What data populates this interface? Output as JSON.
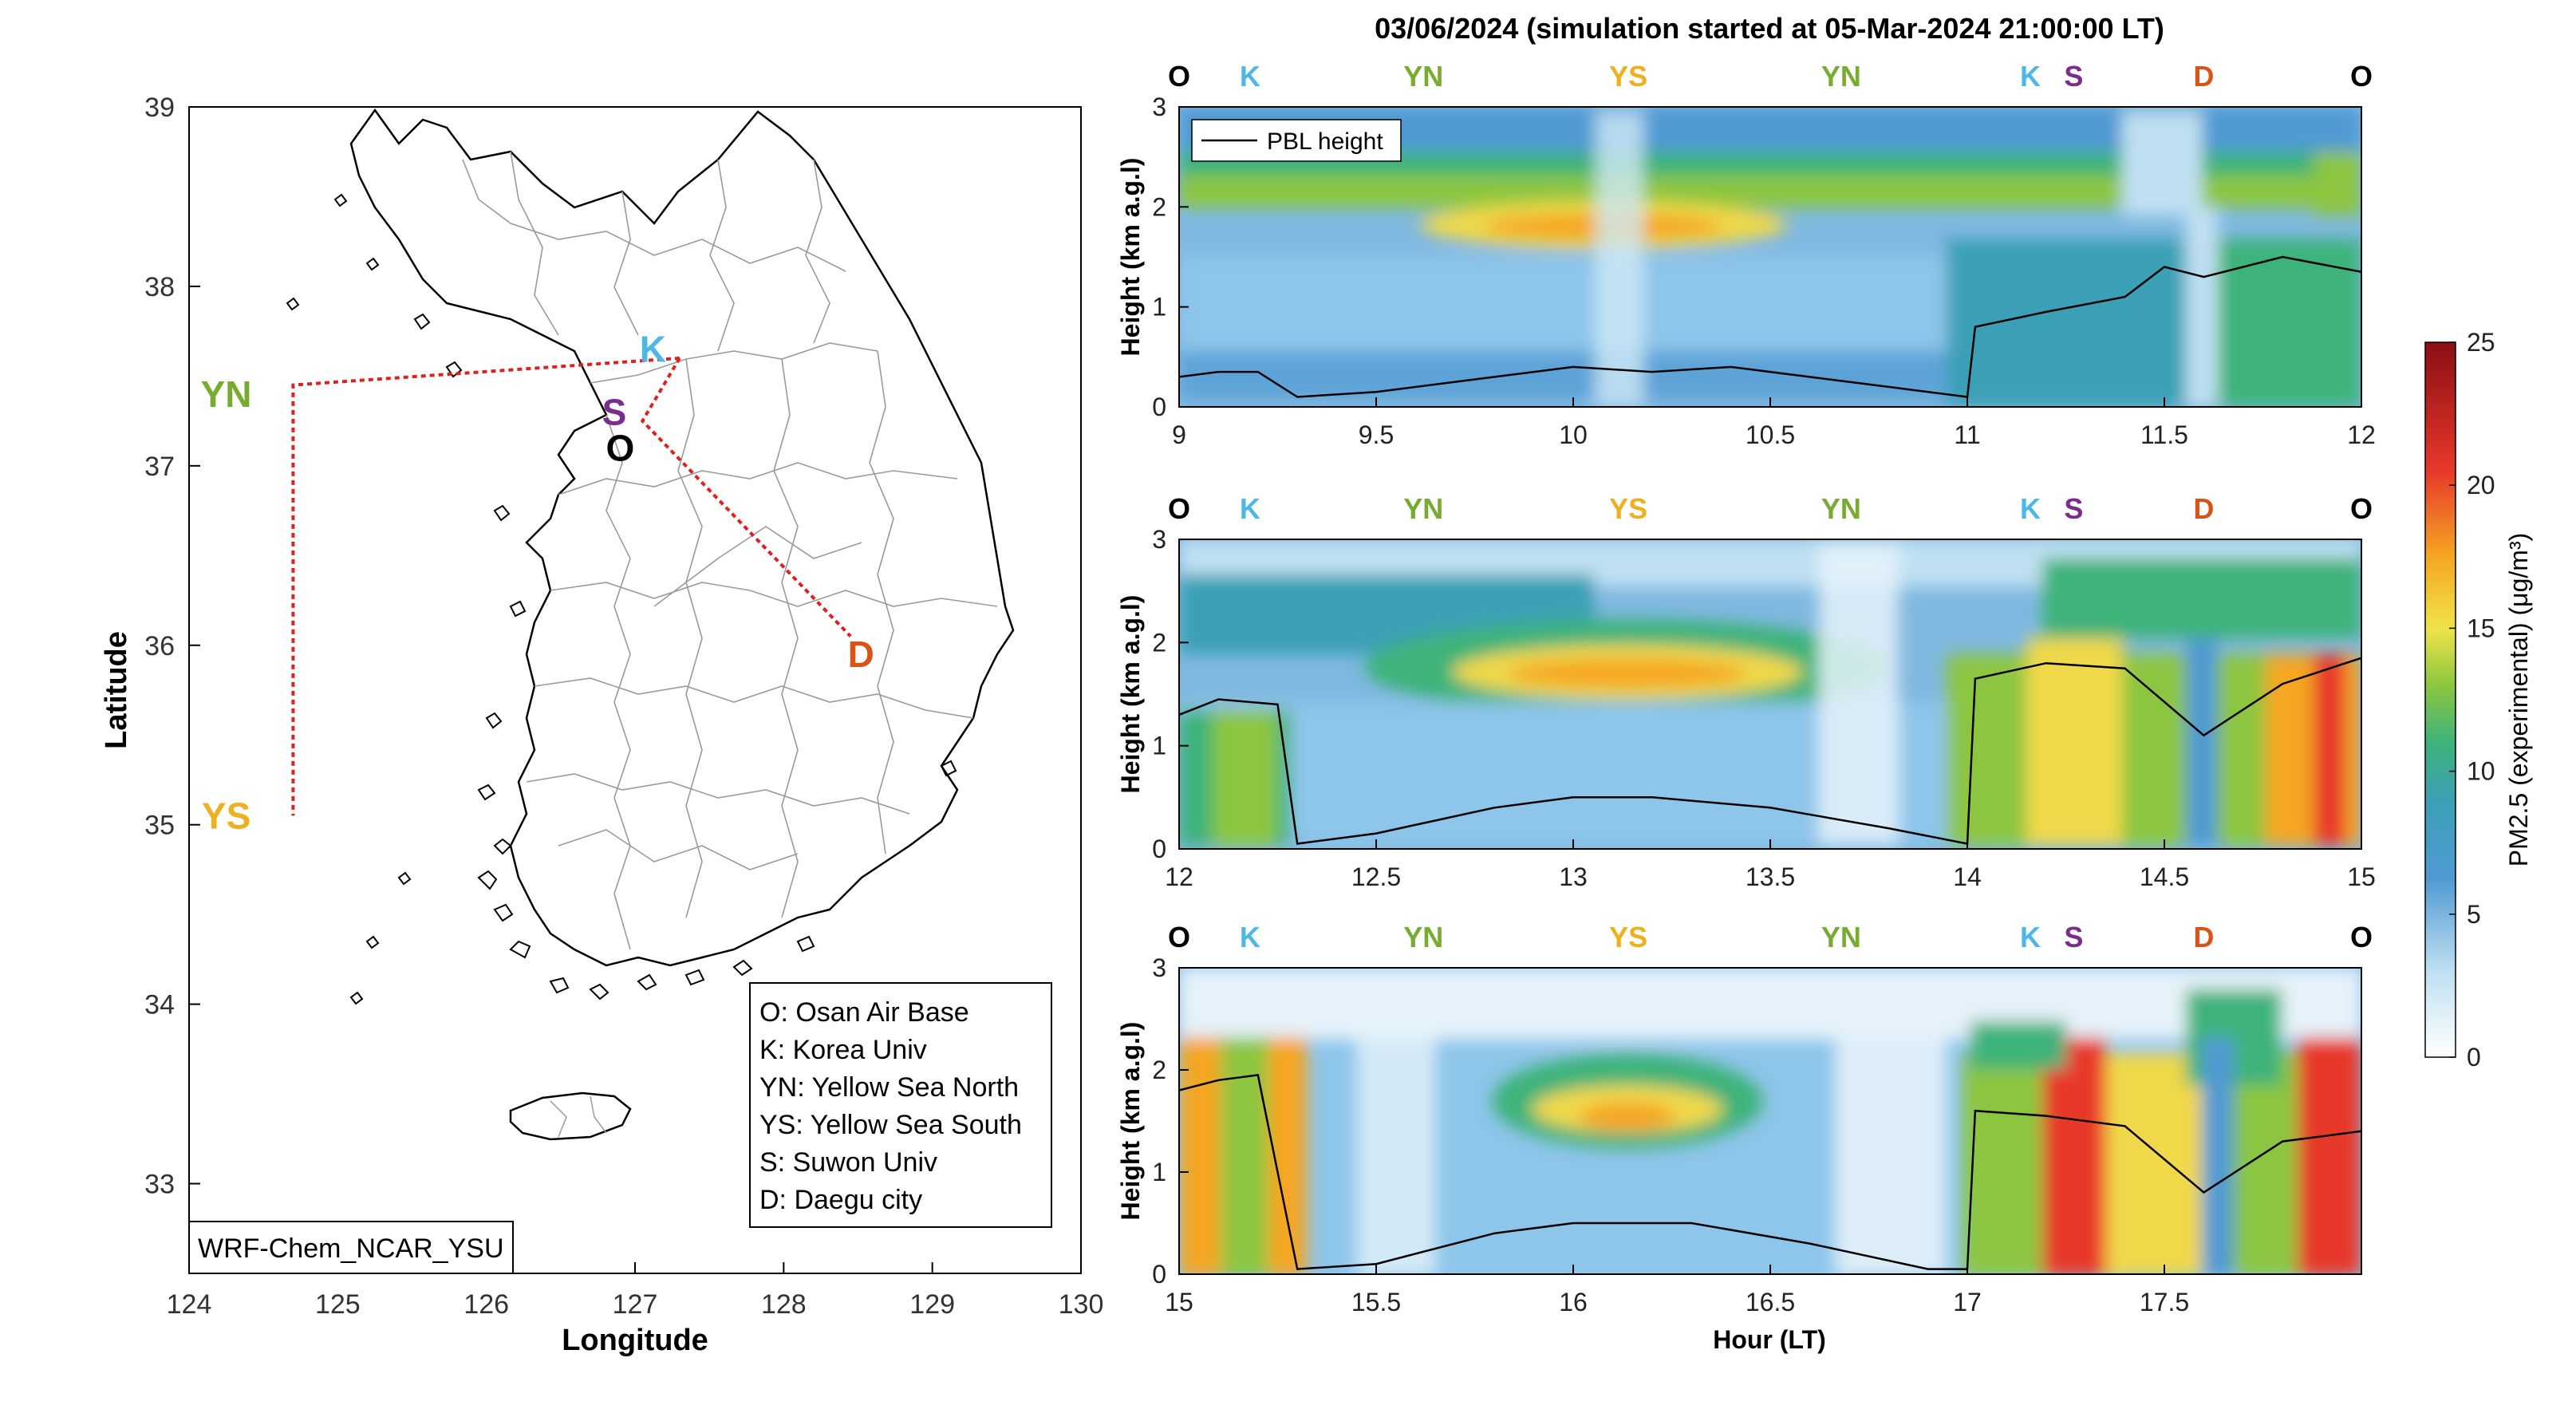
{
  "figure_title": "03/06/2024 (simulation started at 05-Mar-2024 21:00:00 LT)",
  "map": {
    "xlabel": "Longitude",
    "ylabel": "Latitude",
    "xticks": [
      124,
      125,
      126,
      127,
      128,
      129,
      130
    ],
    "yticks": [
      33,
      34,
      35,
      36,
      37,
      38,
      39
    ],
    "xlim": [
      124,
      130
    ],
    "ylim": [
      32.5,
      39
    ],
    "model_label": "WRF-Chem_NCAR_YSU",
    "sites": [
      {
        "code": "O",
        "lon": 126.9,
        "lat": 37.1,
        "color": "#000000"
      },
      {
        "code": "K",
        "lon": 127.12,
        "lat": 37.65,
        "color": "#4db8e8"
      },
      {
        "code": "S",
        "lon": 126.86,
        "lat": 37.3,
        "color": "#7b2d8b"
      },
      {
        "code": "D",
        "lon": 128.52,
        "lat": 35.95,
        "color": "#d95319"
      },
      {
        "code": "YN",
        "lon": 124.25,
        "lat": 37.4,
        "color": "#77ac30"
      },
      {
        "code": "YS",
        "lon": 124.25,
        "lat": 35.05,
        "color": "#edb120"
      }
    ],
    "route": [
      [
        127.3,
        37.6
      ],
      [
        124.7,
        37.45
      ],
      [
        124.7,
        35.05
      ]
    ],
    "route2": [
      [
        127.3,
        37.6
      ],
      [
        127.05,
        37.25
      ],
      [
        128.45,
        36.05
      ]
    ],
    "legend": [
      "O: Osan Air Base",
      "K: Korea Univ",
      "YN: Yellow Sea North",
      "YS: Yellow Sea South",
      "S: Suwon Univ",
      "D: Daegu city"
    ]
  },
  "chart_data": [
    {
      "type": "heatmap",
      "xlabel": "",
      "ylabel": "Height (km a.g.l)",
      "xlim": [
        9,
        12
      ],
      "ylim": [
        0,
        3
      ],
      "xticks": [
        9,
        9.5,
        10,
        10.5,
        11,
        11.5,
        12
      ],
      "yticks": [
        0,
        1,
        2,
        3
      ],
      "legend": "PBL height",
      "legend_position": "top-left",
      "site_labels": [
        {
          "code": "O",
          "x": 9.0
        },
        {
          "code": "K",
          "x": 9.18
        },
        {
          "code": "YN",
          "x": 9.62
        },
        {
          "code": "YS",
          "x": 10.14
        },
        {
          "code": "YN",
          "x": 10.68
        },
        {
          "code": "K",
          "x": 11.16
        },
        {
          "code": "S",
          "x": 11.27
        },
        {
          "code": "D",
          "x": 11.6
        },
        {
          "code": "O",
          "x": 12.0
        }
      ],
      "pbl": {
        "x": [
          9.0,
          9.1,
          9.2,
          9.3,
          9.5,
          9.8,
          10.0,
          10.2,
          10.4,
          10.6,
          10.8,
          11.0,
          11.02,
          11.2,
          11.4,
          11.5,
          11.6,
          11.8,
          12.0
        ],
        "y": [
          0.3,
          0.35,
          0.35,
          0.1,
          0.15,
          0.3,
          0.4,
          0.35,
          0.4,
          0.3,
          0.2,
          0.1,
          0.8,
          0.95,
          1.1,
          1.4,
          1.3,
          1.5,
          1.35
        ]
      }
    },
    {
      "type": "heatmap",
      "xlabel": "",
      "ylabel": "Height (km a.g.l)",
      "xlim": [
        12,
        15
      ],
      "ylim": [
        0,
        3
      ],
      "xticks": [
        12,
        12.5,
        13,
        13.5,
        14,
        14.5,
        15
      ],
      "yticks": [
        0,
        1,
        2,
        3
      ],
      "site_labels": [
        {
          "code": "O",
          "x": 12.0
        },
        {
          "code": "K",
          "x": 12.18
        },
        {
          "code": "YN",
          "x": 12.62
        },
        {
          "code": "YS",
          "x": 13.14
        },
        {
          "code": "YN",
          "x": 13.68
        },
        {
          "code": "K",
          "x": 14.16
        },
        {
          "code": "S",
          "x": 14.27
        },
        {
          "code": "D",
          "x": 14.6
        },
        {
          "code": "O",
          "x": 15.0
        }
      ],
      "pbl": {
        "x": [
          12.0,
          12.1,
          12.25,
          12.3,
          12.5,
          12.8,
          13.0,
          13.2,
          13.5,
          13.8,
          14.0,
          14.02,
          14.2,
          14.4,
          14.6,
          14.8,
          15.0
        ],
        "y": [
          1.3,
          1.45,
          1.4,
          0.05,
          0.15,
          0.4,
          0.5,
          0.5,
          0.4,
          0.2,
          0.05,
          1.65,
          1.8,
          1.75,
          1.1,
          1.6,
          1.85
        ]
      }
    },
    {
      "type": "heatmap",
      "xlabel": "Hour (LT)",
      "ylabel": "Height (km a.g.l)",
      "xlim": [
        15,
        18
      ],
      "ylim": [
        0,
        3
      ],
      "xticks": [
        15,
        15.5,
        16,
        16.5,
        17,
        17.5
      ],
      "yticks": [
        0,
        1,
        2,
        3
      ],
      "site_labels": [
        {
          "code": "O",
          "x": 15.0
        },
        {
          "code": "K",
          "x": 15.18
        },
        {
          "code": "YN",
          "x": 15.62
        },
        {
          "code": "YS",
          "x": 16.14
        },
        {
          "code": "YN",
          "x": 16.68
        },
        {
          "code": "K",
          "x": 17.16
        },
        {
          "code": "S",
          "x": 17.27
        },
        {
          "code": "D",
          "x": 17.6
        },
        {
          "code": "O",
          "x": 18.0
        }
      ],
      "pbl": {
        "x": [
          15.0,
          15.1,
          15.2,
          15.3,
          15.5,
          15.8,
          16.0,
          16.3,
          16.6,
          16.9,
          17.0,
          17.02,
          17.2,
          17.4,
          17.6,
          17.8,
          18.0
        ],
        "y": [
          1.8,
          1.9,
          1.95,
          0.05,
          0.1,
          0.4,
          0.5,
          0.5,
          0.3,
          0.05,
          0.05,
          1.6,
          1.55,
          1.45,
          0.8,
          1.3,
          1.4
        ]
      }
    }
  ],
  "colorbar": {
    "label": "PM2.5 (experimental) (μg/m³)",
    "ticks": [
      0,
      5,
      10,
      15,
      20,
      25
    ],
    "range": [
      0,
      25
    ]
  },
  "colors": {
    "O": "#000000",
    "K": "#4db8e8",
    "YN": "#77ac30",
    "YS": "#edb120",
    "S": "#7b2d8b",
    "D": "#d95319",
    "route": "#e02020"
  }
}
